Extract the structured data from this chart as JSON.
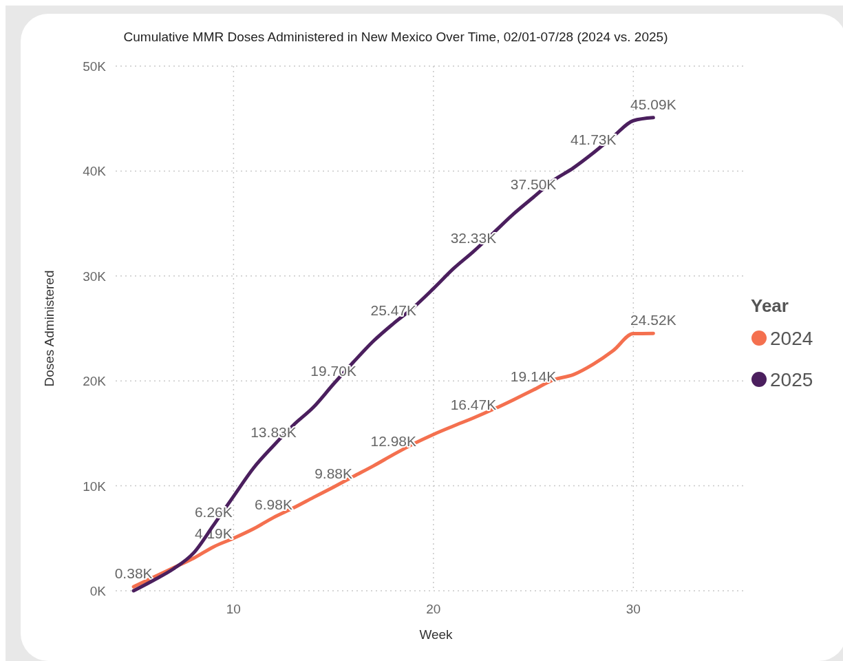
{
  "chart_data": {
    "type": "line",
    "title": "Cumulative MMR Doses Administered in New Mexico Over Time, 02/01-07/28 (2024 vs. 2025)",
    "xlabel": "Week",
    "ylabel": "Doses Administered",
    "legend_title": "Year",
    "x": [
      5,
      6,
      7,
      8,
      9,
      10,
      11,
      12,
      13,
      14,
      15,
      16,
      17,
      18,
      19,
      20,
      21,
      22,
      23,
      24,
      25,
      26,
      27,
      28,
      29,
      30,
      31
    ],
    "series": [
      {
        "name": "2024",
        "color": "#f4704f",
        "values": [
          0.38,
          1.3,
          2.2,
          3.1,
          4.19,
          5.0,
          5.9,
          6.98,
          7.9,
          8.9,
          9.88,
          10.9,
          11.9,
          12.98,
          14.0,
          14.9,
          15.7,
          16.47,
          17.3,
          18.2,
          19.14,
          20.1,
          20.6,
          21.6,
          22.9,
          24.5,
          24.52
        ],
        "value_labels": [
          "0.38K",
          null,
          null,
          null,
          "4.19K",
          null,
          null,
          "6.98K",
          null,
          null,
          "9.88K",
          null,
          null,
          "12.98K",
          null,
          null,
          null,
          "16.47K",
          null,
          null,
          "19.14K",
          null,
          null,
          null,
          null,
          null,
          "24.52K"
        ]
      },
      {
        "name": "2025",
        "color": "#4b1f5e",
        "values": [
          0.0,
          1.0,
          2.1,
          3.6,
          6.26,
          9.0,
          11.7,
          13.83,
          15.8,
          17.5,
          19.7,
          21.8,
          23.8,
          25.47,
          27.0,
          28.8,
          30.7,
          32.33,
          34.1,
          35.9,
          37.5,
          39.1,
          40.3,
          41.73,
          43.3,
          44.8,
          45.09
        ],
        "value_labels": [
          null,
          null,
          null,
          null,
          "6.26K",
          null,
          null,
          "13.83K",
          null,
          null,
          "19.70K",
          null,
          null,
          "25.47K",
          null,
          null,
          null,
          "32.33K",
          null,
          null,
          "37.50K",
          null,
          null,
          "41.73K",
          null,
          null,
          "45.09K"
        ]
      }
    ],
    "xlim": [
      4.1,
      35.6
    ],
    "xticks": [
      10,
      20,
      30
    ],
    "ylim": [
      0,
      50
    ],
    "yticks": [
      {
        "value": 0,
        "label": "0K"
      },
      {
        "value": 10,
        "label": "10K"
      },
      {
        "value": 20,
        "label": "20K"
      },
      {
        "value": 30,
        "label": "30K"
      },
      {
        "value": 40,
        "label": "40K"
      },
      {
        "value": 50,
        "label": "50K"
      }
    ],
    "grid": true,
    "legend": "right",
    "marker": "none",
    "line_style": "solid"
  }
}
